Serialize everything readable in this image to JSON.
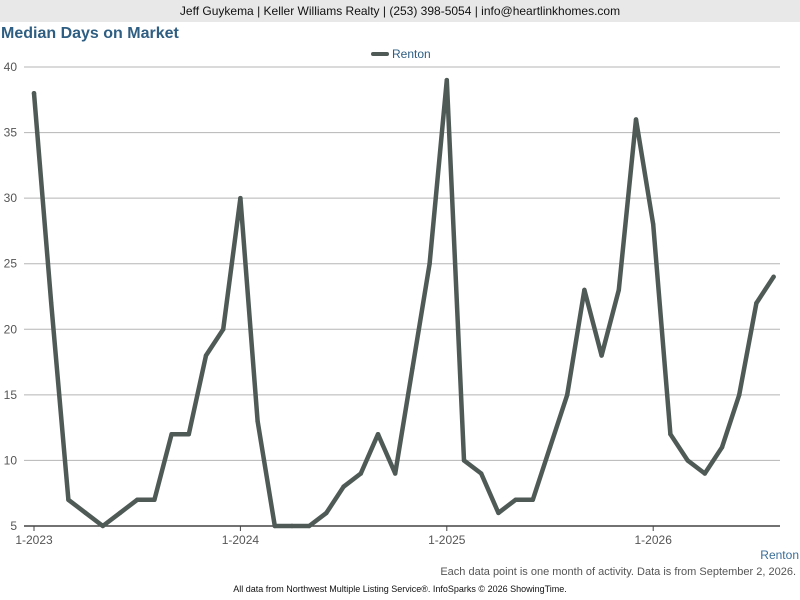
{
  "header": {
    "contact": "Jeff Guykema | Keller Williams Realty | (253) 398-5054 | info@heartlinkhomes.com"
  },
  "chart_data": {
    "type": "line",
    "title": "Median Days on Market",
    "xlabel": "",
    "ylabel": "",
    "ylim": [
      5,
      40
    ],
    "yticks": [
      5,
      10,
      15,
      20,
      25,
      30,
      35,
      40
    ],
    "x_tick_labels": [
      "1-2023",
      "1-2024",
      "1-2025",
      "1-2026"
    ],
    "grid": true,
    "legend_position": "top-center",
    "x": [
      "2023-01",
      "2023-02",
      "2023-03",
      "2023-04",
      "2023-05",
      "2023-06",
      "2023-07",
      "2023-08",
      "2023-09",
      "2023-10",
      "2023-11",
      "2023-12",
      "2024-01",
      "2024-02",
      "2024-03",
      "2024-04",
      "2024-05",
      "2024-06",
      "2024-07",
      "2024-08",
      "2024-09",
      "2024-10",
      "2024-11",
      "2024-12",
      "2025-01",
      "2025-02",
      "2025-03",
      "2025-04",
      "2025-05",
      "2025-06",
      "2025-07",
      "2025-08",
      "2025-09",
      "2025-10",
      "2025-11",
      "2025-12",
      "2026-01",
      "2026-02",
      "2026-03",
      "2026-04",
      "2026-05",
      "2026-06",
      "2026-07",
      "2026-08"
    ],
    "series": [
      {
        "name": "Renton",
        "color": "#4f5a57",
        "values": [
          38,
          22,
          7,
          6,
          5,
          6,
          7,
          7,
          12,
          12,
          18,
          20,
          30,
          13,
          5,
          5,
          5,
          6,
          8,
          9,
          12,
          9,
          17,
          25,
          39,
          10,
          9,
          6,
          7,
          7,
          11,
          15,
          23,
          18,
          23,
          36,
          28,
          12,
          10,
          9,
          11,
          15,
          22,
          24
        ]
      }
    ]
  },
  "footer": {
    "region_label": "Renton",
    "note": "Each data point is one month of activity. Data is from September 2, 2026.",
    "source": "All data from Northwest Multiple Listing Service®. InfoSparks © 2026 ShowingTime."
  }
}
